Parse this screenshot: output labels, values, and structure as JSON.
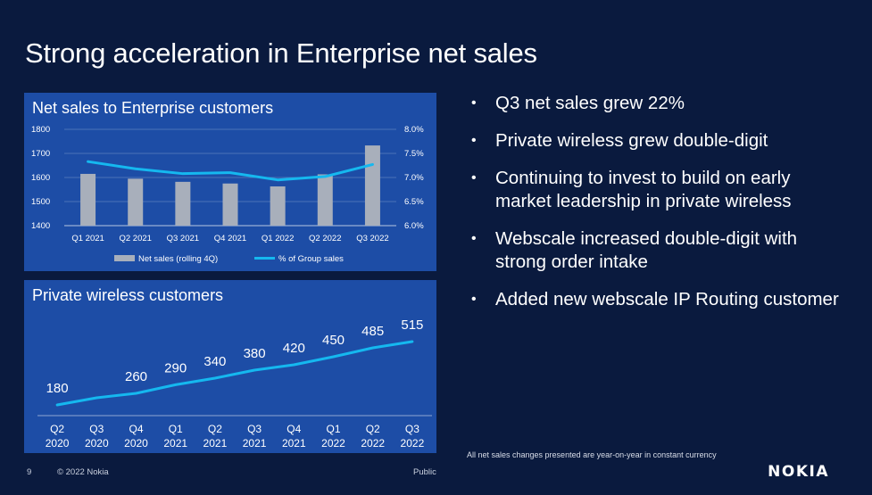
{
  "title": "Strong acceleration in Enterprise net sales",
  "chart_data": [
    {
      "type": "bar",
      "title": "Net sales to Enterprise customers",
      "categories": [
        "Q1 2021",
        "Q2 2021",
        "Q3 2021",
        "Q4 2021",
        "Q1 2022",
        "Q2 2022",
        "Q3 2022"
      ],
      "series": [
        {
          "name": "Net sales (rolling 4Q)",
          "type": "bar",
          "axis": "left",
          "values": [
            1615,
            1595,
            1582,
            1575,
            1563,
            1613,
            1733
          ]
        },
        {
          "name": "% of Group sales",
          "type": "line",
          "axis": "right",
          "values": [
            7.33,
            7.18,
            7.08,
            7.1,
            6.95,
            7.02,
            7.27
          ]
        }
      ],
      "y_left": {
        "min": 1400,
        "max": 1800,
        "ticks": [
          "1400",
          "1500",
          "1600",
          "1700",
          "1800"
        ]
      },
      "y_right": {
        "min": 6.0,
        "max": 8.0,
        "ticks": [
          "6.0%",
          "6.5%",
          "7.0%",
          "7.5%",
          "8.0%"
        ]
      },
      "legend": "bottom",
      "colors": {
        "bar": "#a8afbb",
        "line": "#15b8ef"
      }
    },
    {
      "type": "line",
      "title": "Private wireless customers",
      "categories": [
        [
          "Q2",
          "2020"
        ],
        [
          "Q3",
          "2020"
        ],
        [
          "Q4",
          "2020"
        ],
        [
          "Q1",
          "2021"
        ],
        [
          "Q2",
          "2021"
        ],
        [
          "Q3",
          "2021"
        ],
        [
          "Q4",
          "2021"
        ],
        [
          "Q1",
          "2022"
        ],
        [
          "Q2",
          "2022"
        ],
        [
          "Q3",
          "2022"
        ]
      ],
      "values": [
        180,
        260,
        290,
        340,
        380,
        420,
        450,
        485,
        515
      ],
      "label_positions": [
        0,
        2,
        3,
        4,
        5,
        6,
        7,
        8,
        9
      ],
      "labels": [
        "180",
        "260",
        "290",
        "340",
        "380",
        "420",
        "450",
        "485",
        "515"
      ],
      "line_values": [
        150,
        190,
        215,
        263,
        300,
        345,
        375,
        420,
        470,
        505
      ],
      "colors": {
        "line": "#15b8ef"
      }
    }
  ],
  "bullets": [
    "Q3 net sales grew 22%",
    "Private wireless grew double-digit",
    "Continuing to invest to build on early market leadership in private wireless",
    "Webscale increased double-digit with strong order intake",
    "Added new webscale IP Routing customer"
  ],
  "footnote": "All net sales changes presented are year-on-year in constant currency",
  "footer": {
    "page": "9",
    "copyright": "© 2022 Nokia",
    "classification": "Public"
  },
  "logo": "NOKIA"
}
